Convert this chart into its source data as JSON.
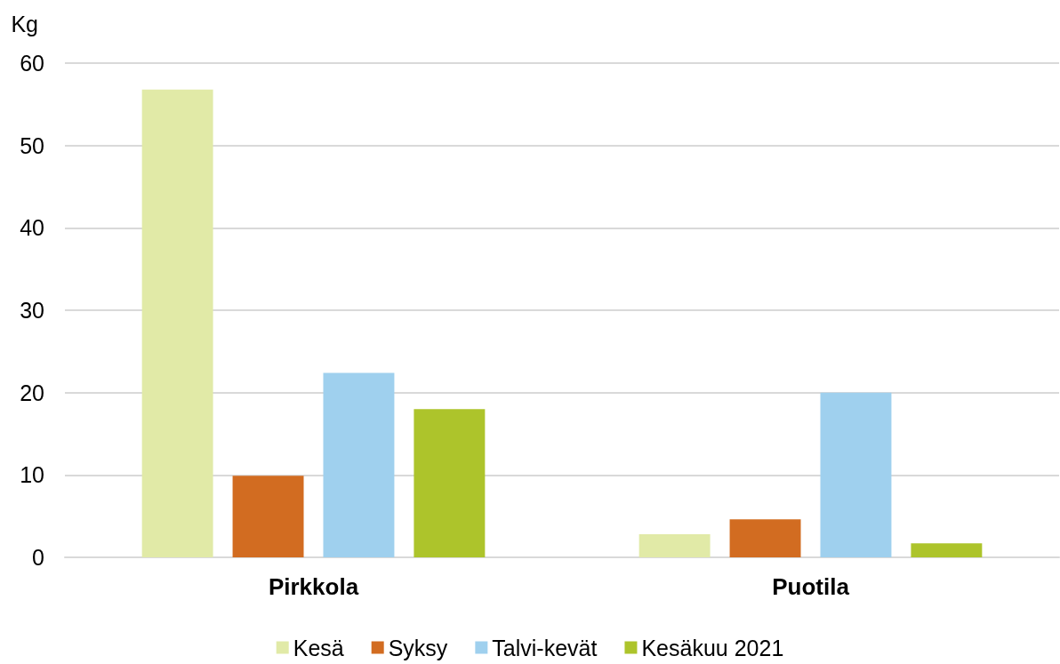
{
  "chart_data": {
    "type": "bar",
    "ylabel": "Kg",
    "categories": [
      "Pirkkola",
      "Puotila"
    ],
    "series": [
      {
        "name": "Kesä",
        "color": "#e1eaa7",
        "values": [
          56.8,
          2.8
        ]
      },
      {
        "name": "Syksy",
        "color": "#d26c21",
        "values": [
          9.9,
          4.6
        ]
      },
      {
        "name": "Talvi-kevät",
        "color": "#9fd0ee",
        "values": [
          22.4,
          20.0
        ]
      },
      {
        "name": "Kesäkuu 2021",
        "color": "#adc42b",
        "values": [
          18.0,
          1.7
        ]
      }
    ],
    "ylim": [
      0,
      60
    ],
    "yticks": [
      0,
      10,
      20,
      30,
      40,
      50,
      60
    ],
    "grid": "y",
    "legend": "bottom"
  }
}
